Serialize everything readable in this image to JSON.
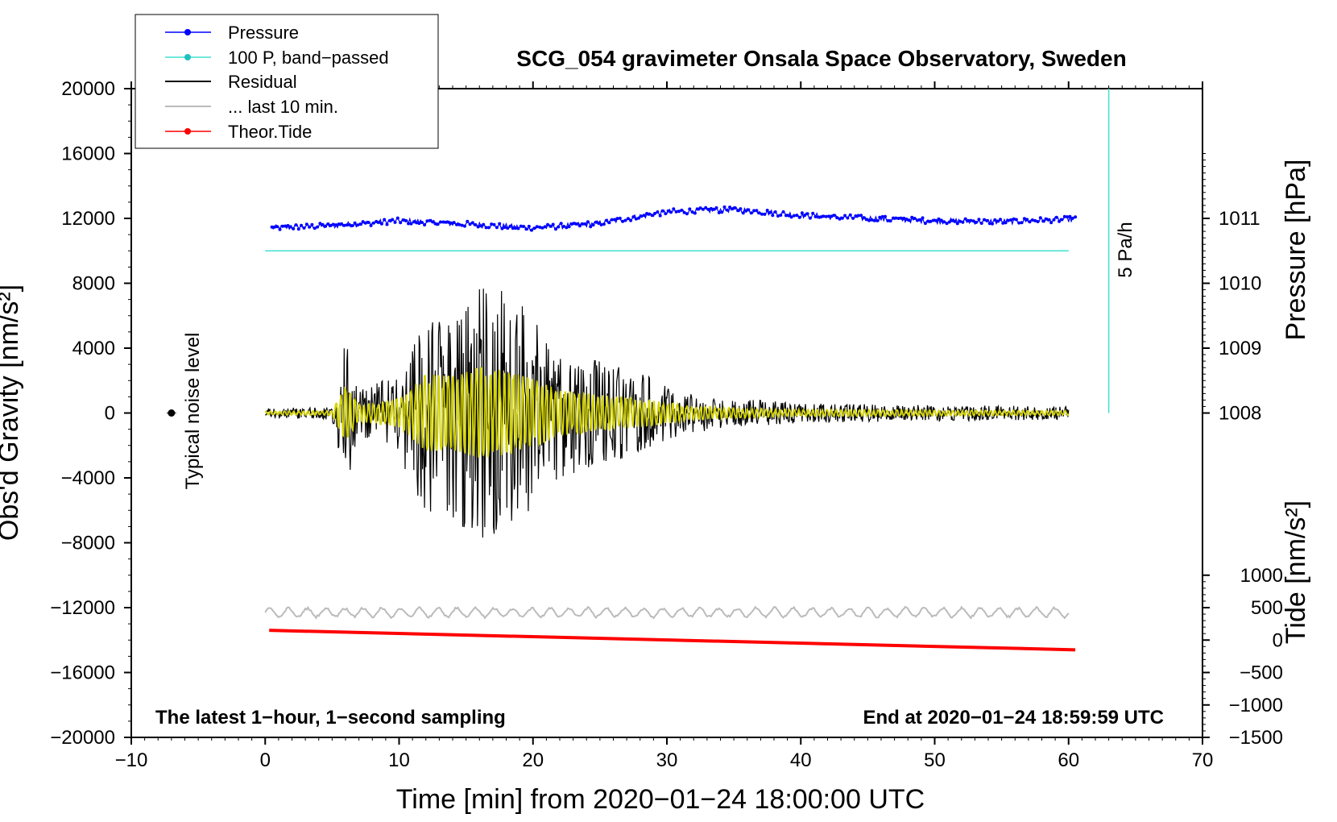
{
  "chart_data": {
    "type": "line",
    "title": "SCG_054 gravimeter Onsala Space Observatory, Sweden",
    "xlabel": "Time [min] from 2020−01−24 18:00:00 UTC",
    "ylabel_left": "Obs'd Gravity [nm/s²]",
    "ylabel_right_top": "Pressure [hPa]",
    "ylabel_right_bottom": "Tide [nm/s²]",
    "xlim": [
      -10,
      70
    ],
    "ylim_left": [
      -20000,
      20000
    ],
    "x_ticks": [
      "−10",
      "0",
      "10",
      "20",
      "30",
      "40",
      "50",
      "60",
      "70"
    ],
    "x_tick_values": [
      -10,
      0,
      10,
      20,
      30,
      40,
      50,
      60,
      70
    ],
    "y_left_ticks": [
      "20000",
      "16000",
      "12000",
      "8000",
      "4000",
      "0",
      "−4000",
      "−8000",
      "−12000",
      "−16000",
      "−20000"
    ],
    "y_left_tick_values": [
      20000,
      16000,
      12000,
      8000,
      4000,
      0,
      -4000,
      -8000,
      -12000,
      -16000,
      -20000
    ],
    "pressure_axis": {
      "ticks": [
        "1011",
        "1010",
        "1009",
        "1008"
      ],
      "tick_values": [
        1011,
        1010,
        1009,
        1008
      ],
      "ref_left_value": 0,
      "ref_hpa": 1008,
      "hpa_per_4000": 1
    },
    "tide_axis": {
      "ticks": [
        "1000",
        "500",
        "0",
        "−500",
        "−1000",
        "−1500"
      ],
      "tick_values": [
        1000,
        500,
        0,
        -500,
        -1000,
        -1500
      ],
      "ref_left_value": -20000,
      "ref_tide": -1500,
      "left_per_tide": 4
    },
    "series": [
      {
        "name": "Pressure",
        "color": "#0000ff",
        "style": "dotted-line",
        "start": 11400,
        "points": [
          [
            0,
            11400
          ],
          [
            5,
            11550
          ],
          [
            10,
            11850
          ],
          [
            15,
            11650
          ],
          [
            20,
            11400
          ],
          [
            25,
            11700
          ],
          [
            30,
            12400
          ],
          [
            35,
            12550
          ],
          [
            40,
            12200
          ],
          [
            45,
            12000
          ],
          [
            50,
            11850
          ],
          [
            55,
            11800
          ],
          [
            60,
            11950
          ]
        ]
      },
      {
        "name": "100 P, band−passed",
        "color": "#40e0d0",
        "value": 10000
      },
      {
        "name": "Residual",
        "color": "#000000",
        "envelope": [
          [
            0,
            300
          ],
          [
            5,
            400
          ],
          [
            6,
            4800
          ],
          [
            7,
            1500
          ],
          [
            10,
            2500
          ],
          [
            12,
            6800
          ],
          [
            14,
            6500
          ],
          [
            16,
            8000
          ],
          [
            18,
            7500
          ],
          [
            20,
            6000
          ],
          [
            22,
            4000
          ],
          [
            25,
            3200
          ],
          [
            28,
            2500
          ],
          [
            32,
            1200
          ],
          [
            35,
            900
          ],
          [
            40,
            600
          ],
          [
            50,
            500
          ],
          [
            60,
            400
          ]
        ]
      },
      {
        "name": "... last 10 min.",
        "color": "#bbbbbb",
        "offset": -12300,
        "amplitude": 350
      },
      {
        "name": "Theor.Tide",
        "color": "#ff0000",
        "tide_start": 150,
        "tide_end": -150
      }
    ],
    "band_passed_overlay": {
      "color": "#d4d400",
      "envelope_fraction": 0.35
    },
    "typical_noise_level": {
      "x": -7,
      "y": 0
    },
    "annotations": {
      "noise_label": "Typical noise level",
      "rate_label": "5 Pa/h",
      "rate_line_x": 63,
      "rate_line_color": "#40e0d0"
    },
    "footer_left": "The latest 1−hour, 1−second sampling",
    "footer_right": "End at 2020−01−24 18:59:59 UTC"
  }
}
